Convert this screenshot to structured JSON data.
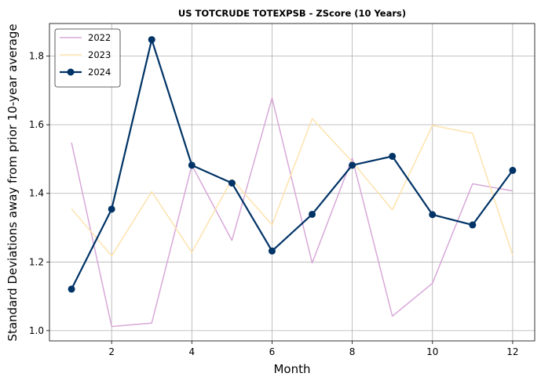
{
  "chart_data": {
    "type": "line",
    "title": "US TOTCRUDE TOTEXPSB - ZScore (10 Years)",
    "xlabel": "Month",
    "ylabel": "Standard Deviations away from prior 10-year average",
    "xlim": [
      0.45,
      12.55
    ],
    "ylim": [
      0.97,
      1.895
    ],
    "xticks": [
      2,
      4,
      6,
      8,
      10,
      12
    ],
    "yticks": [
      1.0,
      1.2,
      1.4,
      1.6,
      1.8
    ],
    "ytick_labels": [
      "1.0",
      "1.2",
      "1.4",
      "1.6",
      "1.8"
    ],
    "grid": true,
    "legend_position": "top-left",
    "x": [
      1,
      2,
      3,
      4,
      5,
      6,
      7,
      8,
      9,
      10,
      11,
      12
    ],
    "series": [
      {
        "name": "2022",
        "color": "#d8a8d8",
        "marker": false,
        "values": [
          1.548,
          1.012,
          1.022,
          1.482,
          1.263,
          1.678,
          1.197,
          1.503,
          1.042,
          1.138,
          1.428,
          1.407
        ]
      },
      {
        "name": "2023",
        "color": "#fde3ad",
        "marker": false,
        "values": [
          1.355,
          1.218,
          1.405,
          1.228,
          1.441,
          1.308,
          1.618,
          1.492,
          1.352,
          1.598,
          1.575,
          1.22
        ]
      },
      {
        "name": "2024",
        "color": "#003366",
        "marker": true,
        "values": [
          1.121,
          1.354,
          1.848,
          1.482,
          1.43,
          1.232,
          1.339,
          1.482,
          1.508,
          1.338,
          1.308,
          1.467
        ]
      }
    ]
  }
}
